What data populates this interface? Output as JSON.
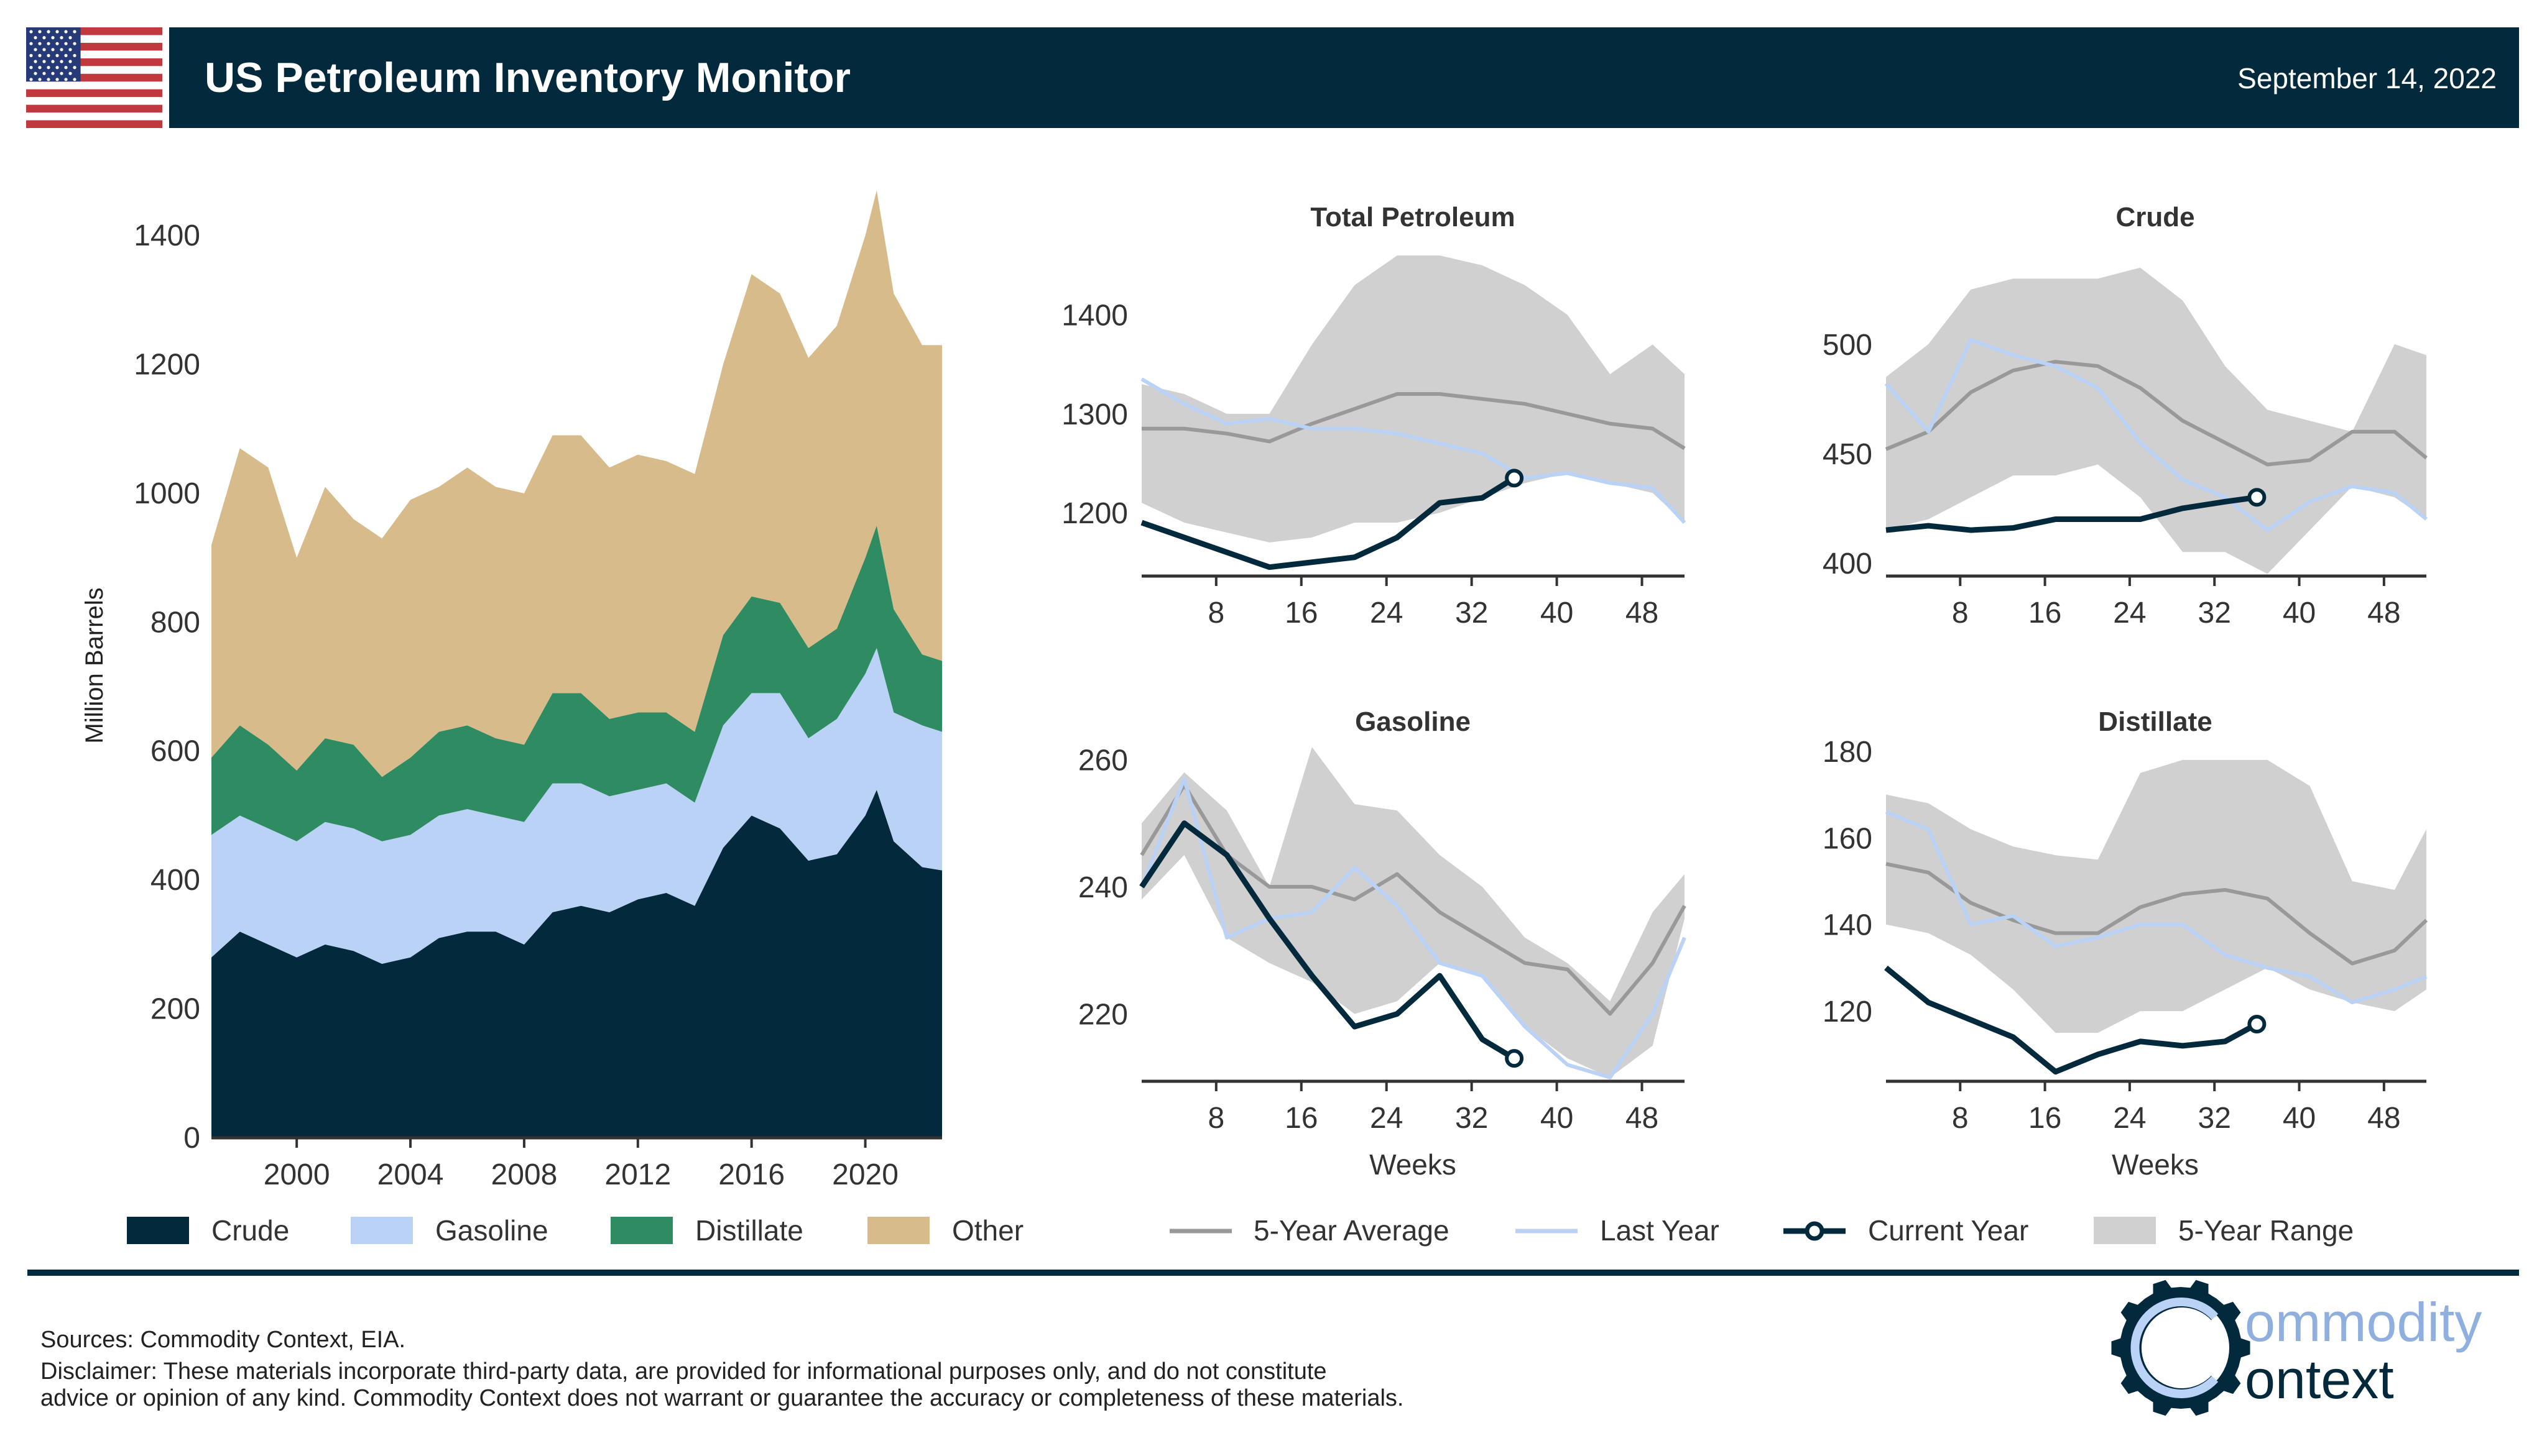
{
  "header": {
    "title": "US Petroleum Inventory Monitor",
    "date": "September 14, 2022",
    "flag_icon": "us-flag-icon"
  },
  "colors": {
    "navy": "#03293d",
    "crude": "#03293d",
    "gasoline": "#b9d2f5",
    "distillate": "#2e8b62",
    "other": "#d8bb8a",
    "range": "#d0d0d0",
    "average": "#999999",
    "last_year": "#b9d2f5",
    "current_year": "#03293d"
  },
  "chart_data": [
    {
      "type": "area",
      "stacked": true,
      "title": "",
      "xlabel": "",
      "ylabel": "Million Barrels",
      "ylim": [
        0,
        1470
      ],
      "xlim": [
        1997,
        2022.7
      ],
      "yticks": [
        0,
        200,
        400,
        600,
        800,
        1000,
        1200,
        1400
      ],
      "xticks": [
        2000,
        2004,
        2008,
        2012,
        2016,
        2020
      ],
      "x": [
        1997,
        1998,
        1999,
        2000,
        2001,
        2002,
        2003,
        2004,
        2005,
        2006,
        2007,
        2008,
        2009,
        2010,
        2011,
        2012,
        2013,
        2014,
        2015,
        2016,
        2017,
        2018,
        2019,
        2020,
        2020.4,
        2021,
        2022,
        2022.7
      ],
      "series": [
        {
          "name": "Crude",
          "values": [
            280,
            320,
            300,
            280,
            300,
            290,
            270,
            280,
            310,
            320,
            320,
            300,
            350,
            360,
            350,
            370,
            380,
            360,
            450,
            500,
            480,
            430,
            440,
            500,
            540,
            460,
            420,
            415
          ]
        },
        {
          "name": "Gasoline",
          "values": [
            190,
            180,
            180,
            180,
            190,
            190,
            190,
            190,
            190,
            190,
            180,
            190,
            200,
            190,
            180,
            170,
            170,
            160,
            190,
            190,
            210,
            190,
            210,
            220,
            220,
            200,
            220,
            215
          ]
        },
        {
          "name": "Distillate",
          "values": [
            120,
            140,
            130,
            110,
            130,
            130,
            100,
            120,
            130,
            130,
            120,
            120,
            140,
            140,
            120,
            120,
            110,
            110,
            140,
            150,
            140,
            140,
            140,
            180,
            190,
            160,
            110,
            110
          ]
        },
        {
          "name": "Other",
          "values": [
            330,
            430,
            430,
            330,
            390,
            350,
            370,
            400,
            380,
            400,
            390,
            390,
            400,
            400,
            390,
            400,
            390,
            400,
            420,
            500,
            480,
            450,
            470,
            500,
            520,
            490,
            480,
            490
          ]
        }
      ],
      "legend": [
        "Crude",
        "Gasoline",
        "Distillate",
        "Other"
      ],
      "legend_position": "bottom"
    },
    {
      "type": "line",
      "title": "Total Petroleum",
      "xlabel": "",
      "ylim": [
        1136,
        1472
      ],
      "xlim": [
        1,
        52
      ],
      "yticks": [
        1200,
        1300,
        1400
      ],
      "xticks": [
        8,
        16,
        24,
        32,
        40,
        48
      ],
      "weeks": [
        1,
        5,
        9,
        13,
        17,
        21,
        25,
        29,
        33,
        37,
        41,
        45,
        49,
        52
      ],
      "range_high": [
        1330,
        1320,
        1300,
        1300,
        1370,
        1430,
        1460,
        1460,
        1450,
        1430,
        1400,
        1340,
        1370,
        1340
      ],
      "range_low": [
        1210,
        1190,
        1180,
        1170,
        1175,
        1190,
        1190,
        1200,
        1215,
        1230,
        1240,
        1230,
        1220,
        1190
      ],
      "average": [
        1285,
        1285,
        1280,
        1272,
        1290,
        1305,
        1320,
        1320,
        1315,
        1310,
        1300,
        1290,
        1285,
        1265
      ],
      "last_year": [
        1335,
        1310,
        1290,
        1295,
        1285,
        1285,
        1280,
        1270,
        1260,
        1235,
        1240,
        1230,
        1225,
        1190
      ],
      "current_weeks": [
        1,
        5,
        9,
        13,
        17,
        21,
        25,
        29,
        33,
        36
      ],
      "current_year": [
        1190,
        1175,
        1160,
        1145,
        1150,
        1155,
        1175,
        1210,
        1215,
        1235
      ]
    },
    {
      "type": "line",
      "title": "Crude",
      "xlabel": "",
      "ylim": [
        394,
        546
      ],
      "xlim": [
        1,
        52
      ],
      "yticks": [
        400,
        450,
        500
      ],
      "xticks": [
        8,
        16,
        24,
        32,
        40,
        48
      ],
      "weeks": [
        1,
        5,
        9,
        13,
        17,
        21,
        25,
        29,
        33,
        37,
        41,
        45,
        49,
        52
      ],
      "range_high": [
        485,
        500,
        525,
        530,
        530,
        530,
        535,
        520,
        490,
        470,
        465,
        460,
        500,
        495
      ],
      "range_low": [
        415,
        420,
        430,
        440,
        440,
        445,
        430,
        405,
        405,
        395,
        415,
        435,
        430,
        420
      ],
      "average": [
        452,
        460,
        478,
        488,
        492,
        490,
        480,
        465,
        455,
        445,
        447,
        460,
        460,
        448
      ],
      "last_year": [
        482,
        460,
        502,
        495,
        490,
        480,
        455,
        438,
        430,
        415,
        428,
        435,
        432,
        420
      ],
      "current_weeks": [
        1,
        5,
        9,
        13,
        17,
        21,
        25,
        29,
        33,
        36
      ],
      "current_year": [
        415,
        417,
        415,
        416,
        420,
        420,
        420,
        425,
        428,
        430
      ]
    },
    {
      "type": "line",
      "title": "Gasoline",
      "xlabel": "Weeks",
      "ylim": [
        209.4,
        262
      ],
      "xlim": [
        1,
        52
      ],
      "yticks": [
        220,
        240,
        260
      ],
      "xticks": [
        8,
        16,
        24,
        32,
        40,
        48
      ],
      "weeks": [
        1,
        5,
        9,
        13,
        17,
        21,
        25,
        29,
        33,
        37,
        41,
        45,
        49,
        52
      ],
      "range_high": [
        250,
        258,
        252,
        240,
        262,
        253,
        252,
        245,
        240,
        232,
        228,
        222,
        236,
        242
      ],
      "range_low": [
        238,
        245,
        232,
        228,
        225,
        220,
        222,
        228,
        226,
        218,
        213,
        210,
        215,
        235
      ],
      "average": [
        245,
        256,
        245,
        240,
        240,
        238,
        242,
        236,
        232,
        228,
        227,
        220,
        228,
        237
      ],
      "last_year": [
        240,
        257,
        232,
        235,
        236,
        243,
        237,
        228,
        226,
        218,
        212,
        210,
        220,
        232
      ],
      "current_weeks": [
        1,
        5,
        9,
        13,
        17,
        21,
        25,
        29,
        33,
        36
      ],
      "current_year": [
        240,
        250,
        245,
        235,
        226,
        218,
        220,
        226,
        216,
        213
      ]
    },
    {
      "type": "line",
      "title": "Distillate",
      "xlabel": "Weeks",
      "ylim": [
        103.8,
        181
      ],
      "xlim": [
        1,
        52
      ],
      "yticks": [
        120,
        140,
        160,
        180
      ],
      "xticks": [
        8,
        16,
        24,
        32,
        40,
        48
      ],
      "weeks": [
        1,
        5,
        9,
        13,
        17,
        21,
        25,
        29,
        33,
        37,
        41,
        45,
        49,
        52
      ],
      "range_high": [
        170,
        168,
        162,
        158,
        156,
        155,
        175,
        178,
        178,
        178,
        172,
        150,
        148,
        162
      ],
      "range_low": [
        140,
        138,
        133,
        125,
        115,
        115,
        120,
        120,
        125,
        130,
        125,
        122,
        120,
        125
      ],
      "average": [
        154,
        152,
        145,
        141,
        138,
        138,
        144,
        147,
        148,
        146,
        138,
        131,
        134,
        141
      ],
      "last_year": [
        166,
        162,
        140,
        142,
        135,
        137,
        140,
        140,
        133,
        130,
        128,
        122,
        125,
        128
      ],
      "current_weeks": [
        1,
        5,
        9,
        13,
        17,
        21,
        25,
        29,
        33,
        36
      ],
      "current_year": [
        130,
        122,
        118,
        114,
        106,
        110,
        113,
        112,
        113,
        117
      ]
    }
  ],
  "legend": {
    "stack": [
      "Crude",
      "Gasoline",
      "Distillate",
      "Other"
    ],
    "lines": [
      "5-Year Average",
      "Last Year",
      "Current Year",
      "5-Year Range"
    ]
  },
  "footer": {
    "sources": "Sources: Commodity Context, EIA.",
    "disclaimer_1": "Disclaimer: These materials incorporate third-party data, are provided for informational purposes only, and do not constitute",
    "disclaimer_2": "advice or opinion of any kind. Commodity Context does not warrant or guarantee the accuracy or completeness of these materials.",
    "logo_line_1": "ommodity",
    "logo_line_2": "ontext",
    "logo_icon": "gear-c-logo-icon"
  }
}
